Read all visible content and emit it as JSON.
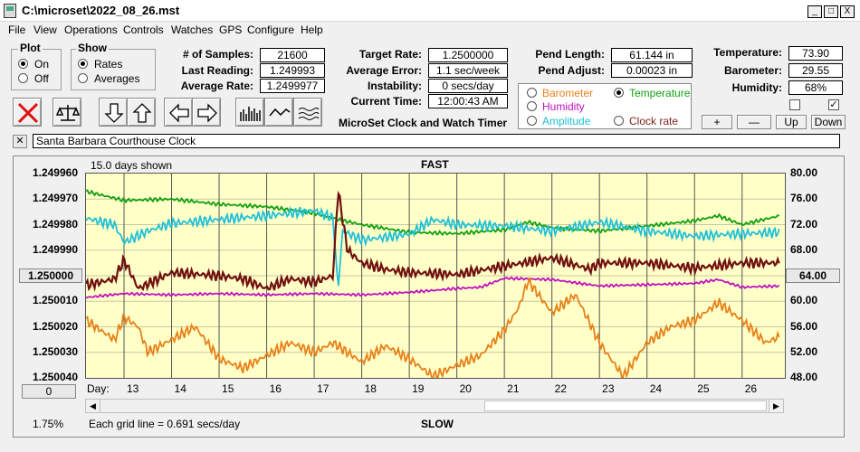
{
  "window": {
    "title": "C:\\microset\\2022_08_26.mst",
    "min": "_",
    "max": "□",
    "close": "X"
  },
  "menu": [
    "File",
    "View",
    "Operations",
    "Controls",
    "Watches",
    "GPS",
    "Configure",
    "Help"
  ],
  "plot_group": {
    "legend": "Plot",
    "options": [
      "On",
      "Off"
    ],
    "selected": 0
  },
  "show_group": {
    "legend": "Show",
    "options": [
      "Rates",
      "Averages"
    ],
    "selected": 0
  },
  "stats": {
    "samples_label": "# of Samples:",
    "samples": "21600",
    "last_reading_label": "Last Reading:",
    "last_reading": "1.249993",
    "average_rate_label": "Average Rate:",
    "average_rate": "1.2499977",
    "target_rate_label": "Target Rate:",
    "target_rate": "1.2500000",
    "average_error_label": "Average Error:",
    "average_error": "1.1 sec/week",
    "instability_label": "Instability:",
    "instability": "0 secs/day",
    "current_time_label": "Current Time:",
    "current_time": "12:00:43 AM",
    "pend_length_label": "Pend Length:",
    "pend_length": "61.144 in",
    "pend_adjust_label": "Pend Adjust:",
    "pend_adjust": "0.00023 in",
    "temperature_label": "Temperature:",
    "temperature": "73.90",
    "barometer_label": "Barometer:",
    "barometer": "29.55",
    "humidity_label": "Humidity:",
    "humidity": "68%"
  },
  "app_caption": "MicroSet Clock and Watch Timer",
  "overlay_options": {
    "items": [
      {
        "label": "Barometer",
        "color": "#e8801a",
        "checked": false
      },
      {
        "label": "Temperature",
        "color": "#10a010",
        "checked": true
      },
      {
        "label": "Humidity",
        "color": "#c010c0",
        "checked": false
      },
      {
        "label": "Amplitude",
        "color": "#20c0d8",
        "checked": false
      },
      {
        "label": "Clock rate",
        "color": "#802020",
        "checked": false
      }
    ]
  },
  "adjust_buttons": [
    "+",
    "—",
    "Up",
    "Down"
  ],
  "checkboxes": [
    {
      "checked": false
    },
    {
      "checked": true
    }
  ],
  "watch_name": "Santa Barbara Courthouse Clock",
  "chart_header": {
    "days_shown": "15.0 days shown",
    "top_label": "FAST",
    "bottom_label": "SLOW"
  },
  "footer": {
    "percent": "1.75%",
    "grid_note": "Each grid line = 0.691 secs/day",
    "day_label": "Day:"
  },
  "side_buttons": {
    "left": "1.250000",
    "right": "64.00",
    "bottom_left": "0"
  },
  "chart_data": {
    "type": "line",
    "x_label": "Day",
    "x_range": [
      12.2,
      26.9
    ],
    "x_ticks": [
      13,
      14,
      15,
      16,
      17,
      18,
      19,
      20,
      21,
      22,
      23,
      24,
      25,
      26
    ],
    "left_axis": {
      "ticks": [
        "1.249960",
        "1.249970",
        "1.249980",
        "1.249990",
        "1.250000",
        "1.250010",
        "1.250020",
        "1.250030",
        "1.250040"
      ],
      "range": [
        1.24996,
        1.25004
      ],
      "inverted": true
    },
    "right_axis": {
      "ticks": [
        "80.00",
        "76.00",
        "72.00",
        "68.00",
        "64.00",
        "60.00",
        "56.00",
        "52.00",
        "48.00"
      ],
      "range": [
        48,
        80
      ]
    },
    "series": [
      {
        "name": "Temperature",
        "color": "#10a010",
        "axis": "right",
        "x": [
          12.2,
          13,
          14,
          15,
          16,
          17,
          17.5,
          18,
          19,
          20,
          21,
          21.5,
          22,
          23,
          24,
          25,
          25.5,
          26,
          26.8
        ],
        "y": [
          77.2,
          75.8,
          76.0,
          75.2,
          74.8,
          73.8,
          72.8,
          72.0,
          70.8,
          70.6,
          71.2,
          72.4,
          71.5,
          71.0,
          71.8,
          72.6,
          73.4,
          72.0,
          73.4
        ]
      },
      {
        "name": "Amplitude",
        "color": "#20c0d8",
        "axis": "right",
        "x": [
          12.2,
          12.8,
          13.0,
          13.5,
          14,
          15,
          16,
          17,
          17.4,
          17.5,
          17.6,
          18,
          19,
          19.5,
          20,
          21,
          22,
          23,
          24,
          25,
          26,
          26.8
        ],
        "y": [
          73.0,
          72.0,
          69.2,
          71.0,
          72.2,
          72.8,
          73.4,
          74.2,
          73.0,
          61.8,
          71.0,
          69.6,
          70.5,
          72.8,
          72.0,
          71.8,
          71.0,
          72.4,
          71.0,
          70.2,
          70.6,
          70.8
        ]
      },
      {
        "name": "Clock rate",
        "color": "#701010",
        "axis": "right",
        "x": [
          12.2,
          12.8,
          13.0,
          13.3,
          14,
          15,
          15.5,
          16,
          16.5,
          17,
          17.4,
          17.5,
          17.7,
          18,
          18.5,
          19,
          20,
          21,
          22,
          22.8,
          23,
          24,
          25,
          26,
          26.8
        ],
        "y": [
          62.5,
          63.5,
          66.5,
          62.0,
          64.5,
          64.0,
          63.5,
          62.0,
          63.5,
          63.0,
          64.0,
          77.6,
          68.0,
          66.0,
          65.0,
          64.5,
          64.2,
          65.5,
          66.8,
          65.0,
          66.0,
          66.0,
          65.2,
          66.0,
          66.0
        ]
      },
      {
        "name": "Humidity",
        "color": "#c010c0",
        "axis": "right",
        "x": [
          12.2,
          13,
          14,
          15,
          16,
          17,
          18,
          19,
          20,
          20.5,
          21,
          22,
          23,
          24,
          25,
          25.5,
          26,
          26.8
        ],
        "y": [
          60.6,
          61.2,
          61.0,
          61.2,
          61.0,
          61.2,
          61.0,
          61.4,
          62.0,
          62.2,
          63.6,
          63.4,
          62.4,
          62.6,
          62.8,
          63.4,
          62.2,
          62.4
        ]
      },
      {
        "name": "Barometer",
        "color": "#e8801a",
        "axis": "right",
        "x": [
          12.2,
          12.8,
          13.0,
          13.3,
          13.5,
          14,
          14.5,
          15,
          15.5,
          16,
          16.5,
          17,
          17.4,
          18,
          18.5,
          19,
          19.5,
          20,
          20.5,
          21,
          21.3,
          21.5,
          22,
          22.5,
          23,
          23.5,
          24,
          24.5,
          25,
          25.5,
          26,
          26.5,
          26.8
        ],
        "y": [
          57.0,
          54.0,
          57.5,
          56.0,
          52.0,
          54.0,
          56.0,
          51.0,
          49.5,
          51.5,
          53.5,
          52.0,
          53.5,
          50.5,
          53.0,
          51.0,
          48.2,
          50.0,
          51.5,
          55.5,
          59.0,
          63.2,
          58.2,
          61.0,
          53.5,
          48.2,
          53.5,
          56.0,
          57.0,
          59.8,
          57.0,
          53.5,
          54.5
        ]
      }
    ]
  }
}
